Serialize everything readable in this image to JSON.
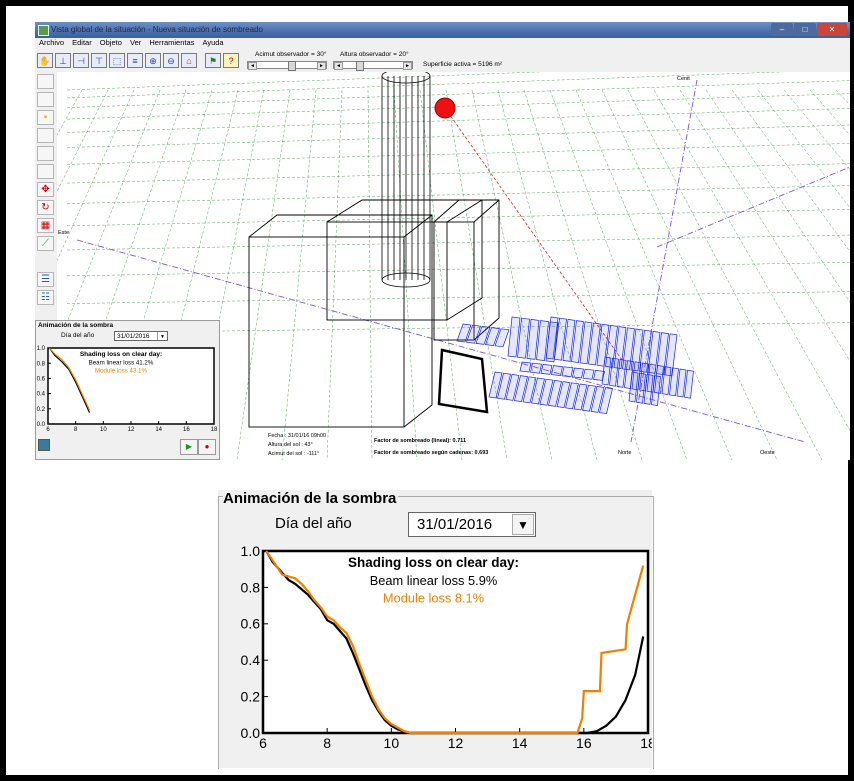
{
  "window": {
    "title": "Vista global de la situación  -  Nueva situación de sombreado",
    "controls": [
      "‒",
      "□",
      "✕"
    ]
  },
  "menu": [
    "Archivo",
    "Editar",
    "Objeto",
    "Ver",
    "Herramientas",
    "Ayuda"
  ],
  "toolbar": {
    "azimuth_label": "Acimut observador =  30°",
    "height_label": "Altura observador =  20°",
    "active_surface": "Superficie activa = 5196 m²",
    "azimuth_deg": 30,
    "height_deg": 20
  },
  "scene": {
    "labels": {
      "zenith": "Cenit",
      "east": "Este",
      "north": "Norte",
      "west": "Oeste"
    },
    "info": {
      "date": "Fecha :  31/01/16 09h00",
      "sun_height": "Altura del sol :  43°",
      "sun_azimuth": "Acimut del sol :  -111°",
      "factor_linear": "Factor de sombreado (lineal):  0.711",
      "factor_strings": "Factor de sombreado según cadenas:  0.693"
    }
  },
  "animation_small": {
    "title": "Animación de la sombra",
    "day_label": "Día del año",
    "date_value": "31/01/2016",
    "chart_title": "Shading loss on clear day:",
    "beam_loss": "Beam linear loss 41.2%",
    "module_loss": "Module loss 43.1%",
    "play_icon": "play-icon",
    "record_icon": "record-icon"
  },
  "animation_large": {
    "title": "Animación de la sombra",
    "day_label": "Día del año",
    "date_value": "31/01/2016",
    "chart_title": "Shading loss on clear day:",
    "beam_loss": "Beam linear loss 5.9%",
    "module_loss": "Module loss 8.1%"
  },
  "chart_data": [
    {
      "type": "line",
      "title": "Shading loss on clear day:",
      "xlim": [
        6,
        18
      ],
      "ylim": [
        0,
        1
      ],
      "x_ticks": [
        "6",
        "8",
        "10",
        "12",
        "14",
        "16",
        "18"
      ],
      "y_ticks": [
        "0.0",
        "0.2",
        "0.4",
        "0.6",
        "0.8",
        "1.0"
      ],
      "colors": {
        "beam": "#000000",
        "module": "#f08000"
      },
      "series": [
        {
          "name": "Beam linear loss 41.2%",
          "x": [
            6.1,
            6.5,
            7.0,
            7.5,
            8.0,
            8.5,
            9.0
          ],
          "y": [
            1.0,
            0.9,
            0.82,
            0.72,
            0.55,
            0.35,
            0.15
          ]
        },
        {
          "name": "Module loss 43.1%",
          "x": [
            6.1,
            6.5,
            7.0,
            7.5,
            8.0,
            8.5,
            9.0
          ],
          "y": [
            1.0,
            0.92,
            0.85,
            0.74,
            0.58,
            0.38,
            0.18
          ]
        }
      ]
    },
    {
      "type": "line",
      "title": "Shading loss on clear day:",
      "xlim": [
        6,
        18
      ],
      "ylim": [
        0,
        1
      ],
      "x_ticks": [
        "6",
        "8",
        "10",
        "12",
        "14",
        "16",
        "18"
      ],
      "y_ticks": [
        "0.0",
        "0.2",
        "0.4",
        "0.6",
        "0.8",
        "1.0"
      ],
      "colors": {
        "beam": "#000000",
        "module": "#f08000"
      },
      "series": [
        {
          "name": "Beam linear loss 5.9%",
          "x": [
            6.1,
            6.3,
            6.6,
            6.8,
            7.0,
            7.2,
            7.4,
            7.6,
            7.8,
            8.0,
            8.2,
            8.4,
            8.6,
            8.8,
            9.0,
            9.2,
            9.4,
            9.6,
            9.8,
            10.0,
            10.2,
            10.4,
            10.6,
            12,
            14,
            15.9,
            16.1,
            16.4,
            16.7,
            17.0,
            17.3,
            17.6,
            17.85
          ],
          "y": [
            1.0,
            0.94,
            0.88,
            0.84,
            0.82,
            0.79,
            0.76,
            0.72,
            0.68,
            0.62,
            0.6,
            0.56,
            0.52,
            0.44,
            0.35,
            0.26,
            0.18,
            0.12,
            0.07,
            0.04,
            0.02,
            0.01,
            0.0,
            0.0,
            0.0,
            0.0,
            0.0,
            0.01,
            0.04,
            0.09,
            0.18,
            0.32,
            0.53
          ]
        },
        {
          "name": "Module loss 8.1%",
          "x": [
            6.1,
            6.3,
            6.6,
            6.8,
            7.0,
            7.2,
            7.4,
            7.6,
            7.8,
            8.0,
            8.2,
            8.4,
            8.6,
            8.8,
            9.0,
            9.2,
            9.4,
            9.6,
            9.8,
            10.0,
            10.2,
            10.4,
            10.6,
            12,
            14,
            15.8,
            15.95,
            16.0,
            16.5,
            16.55,
            17.3,
            17.35,
            17.85
          ],
          "y": [
            1.0,
            0.95,
            0.87,
            0.86,
            0.85,
            0.82,
            0.78,
            0.73,
            0.69,
            0.64,
            0.62,
            0.58,
            0.55,
            0.48,
            0.38,
            0.29,
            0.2,
            0.13,
            0.08,
            0.05,
            0.03,
            0.01,
            0.0,
            0.0,
            0.0,
            0.0,
            0.08,
            0.23,
            0.23,
            0.44,
            0.46,
            0.6,
            0.92
          ]
        }
      ]
    }
  ]
}
